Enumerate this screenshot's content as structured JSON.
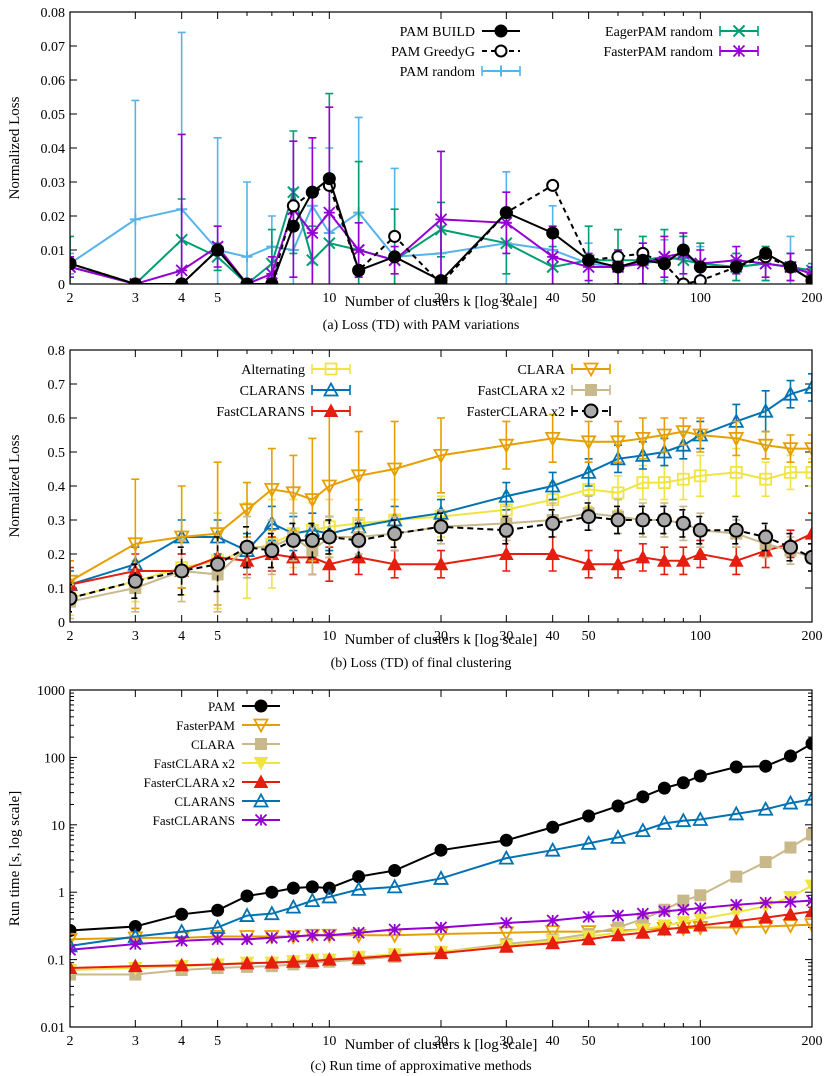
{
  "chart_data": [
    {
      "type": "line",
      "caption": "(a) Loss (TD) with PAM variations",
      "xlabel": "Number of clusters k [log scale]",
      "ylabel": "Normalized Loss",
      "xscale": "log",
      "xlim": [
        2,
        200
      ],
      "ylim": [
        0,
        0.08
      ],
      "yticks": [
        0,
        0.01,
        0.02,
        0.03,
        0.04,
        0.05,
        0.06,
        0.07,
        0.08
      ],
      "ytick_labels": [
        "0",
        "0.01",
        "0.02",
        "0.03",
        "0.04",
        "0.05",
        "0.06",
        "0.07",
        "0.08"
      ],
      "xticks": [
        2,
        3,
        4,
        5,
        10,
        20,
        30,
        40,
        50,
        100,
        200
      ],
      "xtick_labels": [
        "2",
        "3",
        "4",
        "5",
        "10",
        "20",
        "30",
        "40",
        "50",
        "100",
        "200"
      ],
      "legend": "top",
      "x": [
        2,
        3,
        4,
        5,
        6,
        7,
        8,
        9,
        10,
        12,
        15,
        20,
        30,
        40,
        50,
        60,
        70,
        80,
        90,
        100,
        125,
        150,
        175,
        200
      ],
      "series": [
        {
          "name": "PAM random",
          "color": "#56b4e9",
          "marker": "plus",
          "dash": "",
          "values": [
            0.006,
            0.019,
            0.022,
            0.01,
            0.008,
            0.011,
            0.01,
            0.023,
            0.015,
            0.021,
            0.008,
            0.009,
            0.012,
            0.01,
            0.006,
            0.005,
            0.006,
            0.007,
            0.008,
            0.006,
            0.005,
            0.006,
            0.005,
            0.003
          ],
          "errors": [
            0.003,
            0.035,
            0.052,
            0.033,
            0.022,
            0.009,
            0.018,
            0.017,
            0.025,
            0.028,
            0.026,
            0.008,
            0.021,
            0.013,
            0.006,
            0.005,
            0.006,
            0.006,
            0.007,
            0.005,
            0.004,
            0.005,
            0.009,
            0.002
          ]
        },
        {
          "name": "EagerPAM random",
          "color": "#009e73",
          "marker": "x",
          "dash": "",
          "values": [
            0.005,
            0.0,
            0.013,
            0.008,
            0.0,
            0.006,
            0.027,
            0.007,
            0.012,
            0.01,
            0.007,
            0.016,
            0.012,
            0.005,
            0.007,
            0.007,
            0.007,
            0.008,
            0.007,
            0.006,
            0.005,
            0.006,
            0.005,
            0.004
          ],
          "errors": [
            0.009,
            0.0,
            0.012,
            0.004,
            0.0,
            0.01,
            0.018,
            0.01,
            0.044,
            0.026,
            0.015,
            0.008,
            0.009,
            0.006,
            0.01,
            0.009,
            0.007,
            0.008,
            0.007,
            0.006,
            0.004,
            0.005,
            0.004,
            0.002
          ]
        },
        {
          "name": "FasterPAM random",
          "color": "#9400d3",
          "marker": "star",
          "dash": "",
          "values": [
            0.005,
            0.0,
            0.004,
            0.011,
            0.0,
            0.003,
            0.022,
            0.015,
            0.021,
            0.01,
            0.007,
            0.019,
            0.018,
            0.008,
            0.005,
            0.005,
            0.006,
            0.008,
            0.009,
            0.006,
            0.007,
            0.006,
            0.005,
            0.003
          ],
          "errors": [
            0.003,
            0.0,
            0.04,
            0.006,
            0.0,
            0.005,
            0.02,
            0.028,
            0.031,
            0.008,
            0.004,
            0.02,
            0.009,
            0.009,
            0.004,
            0.005,
            0.006,
            0.006,
            0.006,
            0.004,
            0.004,
            0.004,
            0.004,
            0.002
          ]
        },
        {
          "name": "PAM GreedyG",
          "color": "#000000",
          "marker": "circle-open",
          "dash": "5,4",
          "values": [
            0.006,
            0.0,
            0.0,
            0.01,
            0.0,
            0.0,
            0.023,
            0.027,
            0.029,
            0.004,
            0.014,
            0.0,
            0.021,
            0.029,
            0.007,
            0.008,
            0.009,
            0.006,
            0.0,
            0.001,
            0.005,
            0.008,
            0.005,
            0.001
          ],
          "errors": null
        },
        {
          "name": "PAM BUILD",
          "color": "#000000",
          "marker": "circle-filled",
          "dash": "",
          "values": [
            0.006,
            0.0,
            0.0,
            0.01,
            0.0,
            0.0,
            0.017,
            0.027,
            0.031,
            0.004,
            0.008,
            0.001,
            0.021,
            0.015,
            0.007,
            0.005,
            0.007,
            0.006,
            0.01,
            0.005,
            0.005,
            0.009,
            0.005,
            0.001
          ],
          "errors": null
        }
      ]
    },
    {
      "type": "line",
      "caption": "(b) Loss (TD) of final clustering",
      "xlabel": "Number of clusters k [log scale]",
      "ylabel": "Normalized Loss",
      "xscale": "log",
      "xlim": [
        2,
        200
      ],
      "ylim": [
        0,
        0.8
      ],
      "yticks": [
        0,
        0.1,
        0.2,
        0.3,
        0.4,
        0.5,
        0.6,
        0.7,
        0.8
      ],
      "ytick_labels": [
        "0",
        "0.1",
        "0.2",
        "0.3",
        "0.4",
        "0.5",
        "0.6",
        "0.7",
        "0.8"
      ],
      "xticks": [
        2,
        3,
        4,
        5,
        10,
        20,
        30,
        40,
        50,
        100,
        200
      ],
      "xtick_labels": [
        "2",
        "3",
        "4",
        "5",
        "10",
        "20",
        "30",
        "40",
        "50",
        "100",
        "200"
      ],
      "legend": "top-left",
      "x": [
        2,
        3,
        4,
        5,
        6,
        7,
        8,
        9,
        10,
        12,
        15,
        20,
        30,
        40,
        50,
        60,
        70,
        80,
        90,
        100,
        125,
        150,
        175,
        200
      ],
      "series": [
        {
          "name": "Alternating",
          "color": "#f0e442",
          "marker": "square-open",
          "dash": "",
          "values": [
            0.07,
            0.12,
            0.16,
            0.18,
            0.21,
            0.23,
            0.26,
            0.27,
            0.28,
            0.29,
            0.3,
            0.31,
            0.33,
            0.36,
            0.39,
            0.38,
            0.41,
            0.41,
            0.42,
            0.43,
            0.44,
            0.42,
            0.44,
            0.44
          ],
          "errors": [
            0.05,
            0.06,
            0.08,
            0.14,
            0.14,
            0.13,
            0.1,
            0.08,
            0.08,
            0.07,
            0.06,
            0.06,
            0.05,
            0.05,
            0.05,
            0.05,
            0.05,
            0.05,
            0.06,
            0.06,
            0.07,
            0.05,
            0.05,
            0.04
          ]
        },
        {
          "name": "CLARANS",
          "color": "#0072b2",
          "marker": "triangle-open",
          "dash": "",
          "values": [
            0.11,
            0.17,
            0.25,
            0.25,
            0.21,
            0.29,
            0.26,
            0.27,
            0.26,
            0.28,
            0.3,
            0.32,
            0.37,
            0.4,
            0.44,
            0.48,
            0.49,
            0.5,
            0.52,
            0.55,
            0.59,
            0.62,
            0.67,
            0.69
          ],
          "errors": [
            0.04,
            0.05,
            0.05,
            0.05,
            0.05,
            0.05,
            0.05,
            0.05,
            0.05,
            0.05,
            0.04,
            0.04,
            0.04,
            0.04,
            0.04,
            0.04,
            0.04,
            0.04,
            0.04,
            0.04,
            0.05,
            0.06,
            0.04,
            0.04
          ]
        },
        {
          "name": "FastCLARANS",
          "color": "#e51e10",
          "marker": "triangle-filled",
          "dash": "",
          "values": [
            0.11,
            0.15,
            0.15,
            0.19,
            0.18,
            0.2,
            0.19,
            0.19,
            0.17,
            0.19,
            0.17,
            0.17,
            0.2,
            0.2,
            0.17,
            0.17,
            0.19,
            0.18,
            0.18,
            0.2,
            0.18,
            0.21,
            0.23,
            0.26
          ],
          "errors": [
            0.05,
            0.05,
            0.05,
            0.06,
            0.04,
            0.05,
            0.05,
            0.05,
            0.05,
            0.05,
            0.04,
            0.04,
            0.05,
            0.05,
            0.04,
            0.04,
            0.04,
            0.04,
            0.04,
            0.04,
            0.04,
            0.05,
            0.04,
            0.06
          ]
        },
        {
          "name": "CLARA",
          "color": "#e69f00",
          "marker": "triangle-down-open",
          "dash": "",
          "values": [
            0.12,
            0.23,
            0.25,
            0.26,
            0.33,
            0.39,
            0.38,
            0.36,
            0.4,
            0.43,
            0.45,
            0.49,
            0.52,
            0.54,
            0.53,
            0.53,
            0.54,
            0.55,
            0.56,
            0.55,
            0.54,
            0.52,
            0.51,
            0.51
          ],
          "errors": [
            0.06,
            0.19,
            0.15,
            0.21,
            0.08,
            0.12,
            0.11,
            0.18,
            0.21,
            0.13,
            0.14,
            0.11,
            0.07,
            0.07,
            0.06,
            0.06,
            0.06,
            0.05,
            0.04,
            0.05,
            0.05,
            0.04,
            0.04,
            0.04
          ]
        },
        {
          "name": "FastCLARA x2",
          "color": "#c8b88a",
          "marker": "square-filled",
          "dash": "",
          "values": [
            0.06,
            0.1,
            0.15,
            0.14,
            0.22,
            0.22,
            0.25,
            0.21,
            0.25,
            0.25,
            0.26,
            0.28,
            0.29,
            0.3,
            0.32,
            0.31,
            0.3,
            0.3,
            0.29,
            0.27,
            0.26,
            0.23,
            0.21,
            0.19
          ],
          "errors": [
            0.05,
            0.07,
            0.09,
            0.11,
            0.09,
            0.08,
            0.07,
            0.07,
            0.06,
            0.05,
            0.05,
            0.05,
            0.05,
            0.05,
            0.05,
            0.05,
            0.05,
            0.05,
            0.05,
            0.05,
            0.04,
            0.04,
            0.04,
            0.04
          ]
        },
        {
          "name": "FasterCLARA x2",
          "color": "#000000",
          "marker": "circle-open-gray",
          "dash": "6,4",
          "values": [
            0.07,
            0.12,
            0.15,
            0.17,
            0.22,
            0.21,
            0.24,
            0.24,
            0.25,
            0.24,
            0.26,
            0.28,
            0.27,
            0.29,
            0.31,
            0.3,
            0.3,
            0.3,
            0.29,
            0.27,
            0.27,
            0.25,
            0.22,
            0.19
          ],
          "errors": [
            0.04,
            0.05,
            0.07,
            0.08,
            0.06,
            0.05,
            0.05,
            0.05,
            0.05,
            0.05,
            0.04,
            0.04,
            0.04,
            0.04,
            0.04,
            0.04,
            0.04,
            0.04,
            0.04,
            0.04,
            0.04,
            0.04,
            0.04,
            0.04
          ]
        }
      ]
    },
    {
      "type": "line",
      "caption": "(c) Run time of approximative methods",
      "xlabel": "Number of clusters k [log scale]",
      "ylabel": "Run time [s, log scale]",
      "xscale": "log",
      "yscale": "log",
      "xlim": [
        2,
        200
      ],
      "ylim": [
        0.01,
        1000
      ],
      "yticks": [
        0.01,
        0.1,
        1,
        10,
        100,
        1000
      ],
      "ytick_labels": [
        "0.01",
        "0.1",
        "1",
        "10",
        "100",
        "1000"
      ],
      "xticks": [
        2,
        3,
        4,
        5,
        10,
        20,
        30,
        40,
        50,
        100,
        200
      ],
      "xtick_labels": [
        "2",
        "3",
        "4",
        "5",
        "10",
        "20",
        "30",
        "40",
        "50",
        "100",
        "200"
      ],
      "legend": "top-left",
      "x": [
        2,
        3,
        4,
        5,
        6,
        7,
        8,
        9,
        10,
        12,
        15,
        20,
        30,
        40,
        50,
        60,
        70,
        80,
        90,
        100,
        125,
        150,
        175,
        200
      ],
      "series": [
        {
          "name": "PAM",
          "color": "#000000",
          "marker": "circle-filled",
          "values": [
            0.27,
            0.31,
            0.47,
            0.54,
            0.88,
            1.0,
            1.15,
            1.2,
            1.15,
            1.7,
            2.1,
            4.2,
            5.9,
            9.2,
            13.5,
            19,
            26,
            35,
            42,
            53,
            72,
            74,
            105,
            160
          ]
        },
        {
          "name": "FasterPAM",
          "color": "#e69f00",
          "marker": "triangle-down-open",
          "values": [
            0.2,
            0.21,
            0.21,
            0.22,
            0.22,
            0.22,
            0.22,
            0.23,
            0.23,
            0.23,
            0.23,
            0.24,
            0.25,
            0.26,
            0.26,
            0.27,
            0.28,
            0.29,
            0.29,
            0.3,
            0.3,
            0.31,
            0.32,
            0.33
          ]
        },
        {
          "name": "CLARA",
          "color": "#c8b88a",
          "marker": "square-filled",
          "values": [
            0.06,
            0.06,
            0.07,
            0.075,
            0.078,
            0.08,
            0.085,
            0.09,
            0.093,
            0.1,
            0.11,
            0.13,
            0.17,
            0.2,
            0.24,
            0.3,
            0.4,
            0.55,
            0.75,
            0.9,
            1.7,
            2.8,
            4.6,
            7.2
          ]
        },
        {
          "name": "FastCLARA x2",
          "color": "#f0e442",
          "marker": "triangle-down-filled",
          "values": [
            0.07,
            0.075,
            0.08,
            0.085,
            0.09,
            0.09,
            0.095,
            0.1,
            0.1,
            0.11,
            0.12,
            0.13,
            0.16,
            0.19,
            0.22,
            0.25,
            0.28,
            0.32,
            0.36,
            0.4,
            0.5,
            0.62,
            0.85,
            1.25
          ]
        },
        {
          "name": "FasterCLARA x2",
          "color": "#e51e10",
          "marker": "triangle-filled",
          "values": [
            0.075,
            0.08,
            0.082,
            0.085,
            0.088,
            0.09,
            0.093,
            0.095,
            0.1,
            0.105,
            0.115,
            0.125,
            0.155,
            0.175,
            0.2,
            0.23,
            0.25,
            0.28,
            0.3,
            0.32,
            0.37,
            0.42,
            0.47,
            0.52
          ]
        },
        {
          "name": "CLARANS",
          "color": "#0072b2",
          "marker": "triangle-open",
          "values": [
            0.16,
            0.22,
            0.26,
            0.3,
            0.45,
            0.48,
            0.6,
            0.75,
            0.85,
            1.1,
            1.2,
            1.6,
            3.2,
            4.2,
            5.3,
            6.5,
            8.2,
            10.5,
            11.5,
            12.0,
            14.5,
            17,
            21,
            24
          ]
        },
        {
          "name": "FastCLARANS",
          "color": "#9400d3",
          "marker": "star",
          "values": [
            0.14,
            0.17,
            0.19,
            0.2,
            0.2,
            0.21,
            0.22,
            0.23,
            0.23,
            0.25,
            0.28,
            0.3,
            0.35,
            0.38,
            0.43,
            0.45,
            0.48,
            0.52,
            0.55,
            0.58,
            0.65,
            0.7,
            0.72,
            0.75
          ]
        }
      ]
    }
  ]
}
